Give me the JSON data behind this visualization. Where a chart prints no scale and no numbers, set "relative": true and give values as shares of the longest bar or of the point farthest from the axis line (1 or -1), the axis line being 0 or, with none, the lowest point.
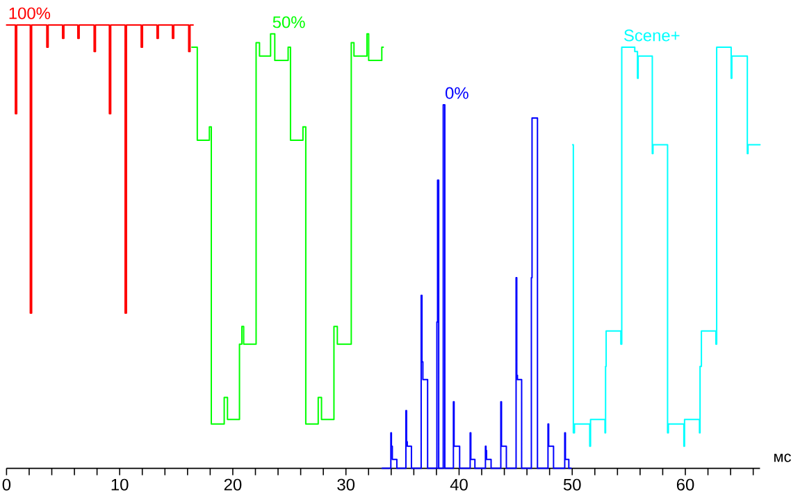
{
  "chart_data": {
    "type": "step",
    "relative": true,
    "tick_labels": "x",
    "legend": false,
    "xlabel": "мс",
    "xlim": [
      0,
      66.6
    ],
    "xticks": [
      0,
      {
        "value": 2,
        "label": null
      },
      {
        "value": 4,
        "label": null
      },
      {
        "value": 6,
        "label": null
      },
      {
        "value": 8,
        "label": null
      },
      10,
      {
        "value": 12,
        "label": null
      },
      {
        "value": 14,
        "label": null
      },
      {
        "value": 16,
        "label": null
      },
      {
        "value": 18,
        "label": null
      },
      20,
      {
        "value": 22,
        "label": null
      },
      {
        "value": 24,
        "label": null
      },
      {
        "value": 26,
        "label": null
      },
      {
        "value": 28,
        "label": null
      },
      30,
      {
        "value": 32,
        "label": null
      },
      {
        "value": 34,
        "label": null
      },
      {
        "value": 36,
        "label": null
      },
      {
        "value": 38,
        "label": null
      },
      40,
      {
        "value": 42,
        "label": null
      },
      {
        "value": 44,
        "label": null
      },
      {
        "value": 46,
        "label": null
      },
      {
        "value": 48,
        "label": null
      },
      50,
      {
        "value": 52,
        "label": null
      },
      {
        "value": 54,
        "label": null
      },
      {
        "value": 56,
        "label": null
      },
      {
        "value": 58,
        "label": null
      },
      60,
      {
        "value": 62,
        "label": null
      },
      {
        "value": 64,
        "label": null
      },
      {
        "value": 66,
        "label": null
      }
    ],
    "series": [
      {
        "name": "100%",
        "color": "#ff0000",
        "x": [
          0,
          0.78,
          0.9,
          2.1,
          2.22,
          3.56,
          3.68,
          4.95,
          5.07,
          6.3,
          6.42,
          7.74,
          7.86,
          9.09,
          9.21,
          10.48,
          10.6,
          11.9,
          12.02,
          13.3,
          13.42,
          14.66,
          14.78,
          16.1,
          16.22,
          16.5
        ],
        "values": [
          1,
          0.8,
          1,
          0.35,
          1,
          0.95,
          1,
          0.97,
          1,
          0.97,
          1,
          0.94,
          1,
          0.8,
          1,
          0.35,
          1,
          0.95,
          1,
          0.97,
          1,
          0.97,
          1,
          0.94,
          1,
          1
        ]
      },
      {
        "name": "50%",
        "color": "#00ff00",
        "x": [
          16.38,
          16.86,
          17.93,
          18.1,
          19.24,
          19.53,
          20.59,
          20.8,
          20.96,
          22.06,
          22.36,
          23.34,
          23.71,
          24.89,
          25.1,
          26.2,
          26.45,
          27.55,
          27.84,
          28.94,
          29.24,
          30.47,
          30.71,
          31.86,
          32.01,
          33.17,
          33.3
        ],
        "values": [
          0.95,
          0.74,
          0.77,
          0.1,
          0.16,
          0.11,
          0.28,
          0.32,
          0.28,
          0.96,
          0.93,
          0.98,
          0.92,
          0.95,
          0.74,
          0.77,
          0.1,
          0.16,
          0.11,
          0.32,
          0.28,
          0.96,
          0.93,
          0.98,
          0.92,
          0.95,
          0.95
        ]
      },
      {
        "name": "0%",
        "color": "#0000ff",
        "x": [
          33.2,
          33.97,
          34.02,
          34.1,
          34.5,
          35.3,
          35.36,
          35.42,
          35.79,
          36.65,
          36.72,
          36.8,
          37.22,
          38.04,
          38.1,
          38.2,
          38.6,
          38.74,
          39.5,
          39.56,
          40.05,
          40.98,
          41.04,
          41.4,
          42.33,
          42.38,
          42.43,
          42.83,
          43.69,
          43.75,
          44.18,
          45.04,
          45.1,
          45.16,
          45.53,
          46.39,
          46.45,
          46.93,
          47.86,
          47.92,
          48.35,
          49.34,
          49.4,
          49.7,
          49.9
        ],
        "values": [
          0,
          0.08,
          0.05,
          0.02,
          0,
          0.13,
          0.06,
          0.05,
          0,
          0.39,
          0.24,
          0.2,
          0,
          0.33,
          0.65,
          0,
          0.82,
          0,
          0.15,
          0.05,
          0,
          0.08,
          0.02,
          0,
          0.05,
          0.04,
          0.02,
          0,
          0.15,
          0.05,
          0,
          0.43,
          0.21,
          0.2,
          0,
          0.43,
          0.79,
          0,
          0.1,
          0.05,
          0,
          0.08,
          0.02,
          0,
          0
        ]
      },
      {
        "name": "Scene+",
        "color": "#00ffff",
        "x": [
          50.04,
          50.1,
          50.2,
          51.55,
          51.62,
          52.9,
          52.95,
          53.0,
          54.3,
          54.38,
          55.53,
          55.77,
          55.83,
          57.08,
          57.14,
          58.43,
          58.5,
          59.87,
          59.93,
          61.25,
          61.3,
          61.42,
          62.7,
          62.77,
          64.05,
          64.11,
          65.48,
          65.54,
          66.6
        ],
        "values": [
          0.73,
          0.08,
          0.1,
          0.05,
          0.11,
          0.08,
          0.23,
          0.31,
          0.28,
          0.95,
          0.94,
          0.88,
          0.93,
          0.71,
          0.73,
          0.08,
          0.1,
          0.05,
          0.11,
          0.08,
          0.23,
          0.31,
          0.28,
          0.95,
          0.88,
          0.93,
          0.71,
          0.73,
          0.73
        ]
      }
    ]
  }
}
